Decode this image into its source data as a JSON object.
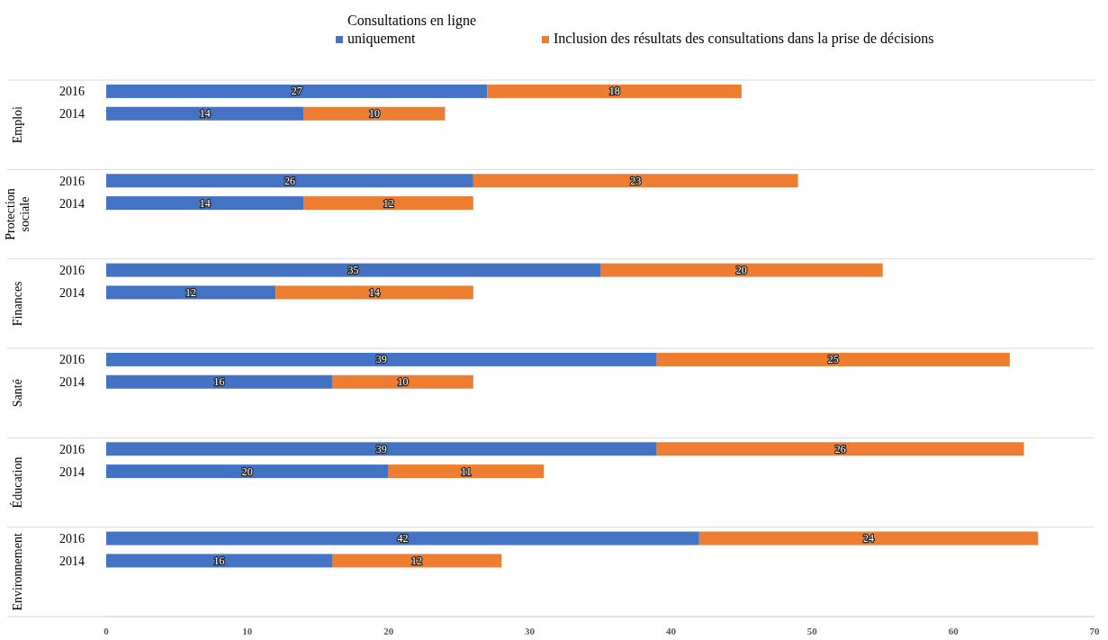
{
  "chart_data": {
    "type": "bar",
    "orientation": "horizontal",
    "stacked": true,
    "data_labels": true,
    "legend": "top",
    "categories": [
      "2016",
      "2014",
      null,
      null,
      "2016",
      "2014",
      null,
      null,
      "2016",
      "2014",
      null,
      null,
      "2016",
      "2014",
      null,
      null,
      "2016",
      "2014",
      null,
      null,
      "2016",
      "2014",
      null,
      null
    ],
    "series": [
      {
        "name": "Consultations en ligne uniquement",
        "color": "#4472c4",
        "values": [
          27,
          14,
          null,
          null,
          26,
          14,
          null,
          null,
          35,
          12,
          null,
          null,
          39,
          16,
          null,
          null,
          39,
          20,
          null,
          null,
          42,
          16,
          null,
          null
        ]
      },
      {
        "name": "Inclusion des résultats des consultations dans la prise de décisions",
        "color": "#ed7d31",
        "values": [
          18,
          10,
          null,
          null,
          23,
          12,
          null,
          null,
          20,
          14,
          null,
          null,
          25,
          10,
          null,
          null,
          26,
          11,
          null,
          null,
          24,
          12,
          null,
          null
        ]
      }
    ],
    "xlim": [
      0,
      70
    ],
    "xticks": [
      0,
      10,
      20,
      30,
      40,
      50,
      60,
      70
    ],
    "annotations": [
      "Emploi",
      "Protection sociale",
      "Finances",
      "Santé",
      "Éducation",
      "Environnement"
    ]
  }
}
